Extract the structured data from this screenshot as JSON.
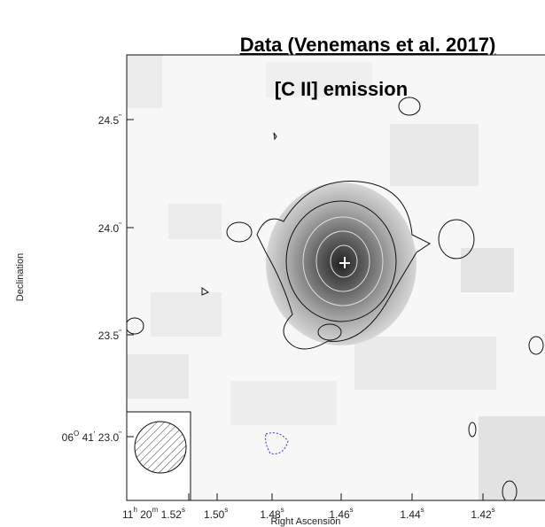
{
  "title": "Data (Venemans et al. 2017)",
  "panel_label": "[C II] emission",
  "y_axis": {
    "label": "Declination",
    "ticks": [
      {
        "main": "24.5",
        "sup": "\""
      },
      {
        "main": "24.0",
        "sup": "\""
      },
      {
        "main": "23.5",
        "sup": "\""
      },
      {
        "pre": "06",
        "deg": "O",
        "mid": " 41",
        "min": "'",
        "main": " 23.0",
        "sup": "\""
      }
    ]
  },
  "x_axis": {
    "label": "Right Ascension",
    "ticks": [
      {
        "pre": "11",
        "h": "h",
        "mid": " 20",
        "m": "m",
        "main": " 1.52",
        "sup": "s"
      },
      {
        "main": "1.50",
        "sup": "s"
      },
      {
        "main": "1.48",
        "sup": "s"
      },
      {
        "main": "1.46",
        "sup": "s"
      },
      {
        "main": "1.44",
        "sup": "s"
      },
      {
        "main": "1.42",
        "sup": "s"
      }
    ]
  }
}
